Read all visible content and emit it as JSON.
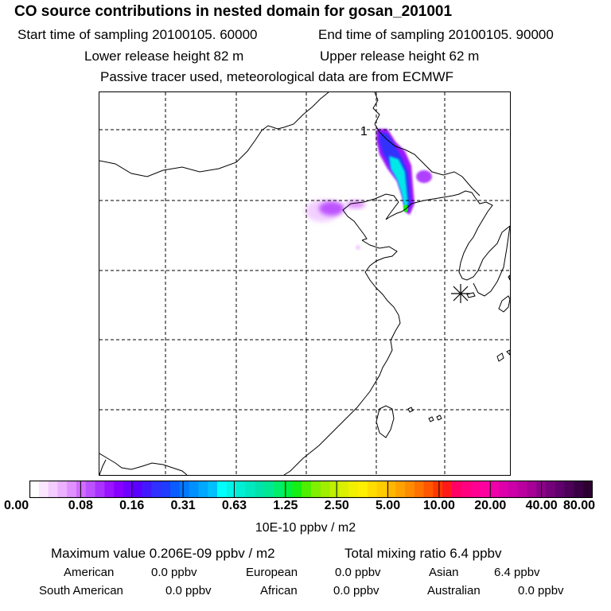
{
  "header": {
    "title": "CO  source contributions in nested domain for gosan_201001",
    "start_time": "Start time of sampling 20100105. 60000",
    "end_time": "End time of sampling 20100105. 90000",
    "lower_height": "Lower release height   82 m",
    "upper_height": "Upper release height   62 m",
    "tracer_note": "Passive tracer used, meteorological data are from ECMWF"
  },
  "map": {
    "receptor_label": "1",
    "grid": "dashed"
  },
  "chart_data": {
    "type": "heatmap",
    "variable": "CO source contribution",
    "units": "10E-10 ppbv / m2",
    "colorbar": {
      "tick_labels": [
        "0.00",
        "0.08",
        "0.16",
        "0.31",
        "0.63",
        "1.25",
        "2.50",
        "5.00",
        "10.00",
        "20.00",
        "40.00",
        "80.00"
      ],
      "tick_values": [
        0.0,
        0.08,
        0.16,
        0.31,
        0.63,
        1.25,
        2.5,
        5.0,
        10.0,
        20.0,
        40.0,
        80.0
      ],
      "colors": [
        "#ffffff",
        "#fbe6ff",
        "#f4ccff",
        "#ebb0ff",
        "#e090ff",
        "#d06cff",
        "#bd52ff",
        "#aa33ff",
        "#9a14ff",
        "#8800ff",
        "#7000ff",
        "#5a00ff",
        "#4418ff",
        "#3030ff",
        "#1f3cff",
        "#0a5cff",
        "#0078ff",
        "#0090ff",
        "#00a8ff",
        "#00c0ff",
        "#00ffff",
        "#00f5e8",
        "#00eed4",
        "#00e8c0",
        "#00e4ac",
        "#00e894",
        "#00ef6a",
        "#00f040",
        "#14ef14",
        "#50ee00",
        "#80f000",
        "#a0ee00",
        "#bff000",
        "#dcef00",
        "#f0f000",
        "#ffef00",
        "#ffdd00",
        "#ffcc00",
        "#ffb600",
        "#ffa200",
        "#ff8c00",
        "#ff7200",
        "#ff5600",
        "#ff3800",
        "#ff1a1a",
        "#ff0066",
        "#ff007e",
        "#ff0090",
        "#ff00a0",
        "#f000a8",
        "#dd00aa",
        "#cc00a8",
        "#bb00a0",
        "#a60096",
        "#8c0088",
        "#74007a",
        "#60006c",
        "#4c0058",
        "#3a0044",
        "#2c0030"
      ]
    },
    "max_value": "0.206E-09 ppbv / m2",
    "total_mixing_ratio": "6.4 ppbv"
  },
  "summary": {
    "max_label": "Maximum value  0.206E-09 ppbv / m2",
    "total_label": "Total mixing ratio       6.4 ppbv"
  },
  "regions": [
    {
      "name": "American",
      "value": "0.0 ppbv"
    },
    {
      "name": "European",
      "value": "0.0 ppbv"
    },
    {
      "name": "Asian",
      "value": "6.4 ppbv"
    },
    {
      "name": "South American",
      "value": "0.0 ppbv"
    },
    {
      "name": "African",
      "value": "0.0 ppbv"
    },
    {
      "name": "Australian",
      "value": "0.0 ppbv"
    }
  ]
}
